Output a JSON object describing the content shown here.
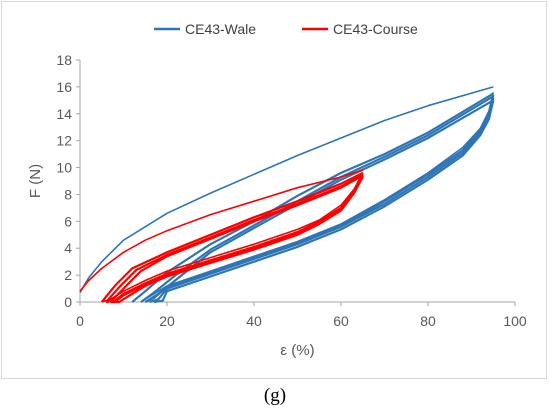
{
  "caption": "(g)",
  "chart_data": {
    "type": "line",
    "title": "",
    "xlabel": "ε (%)",
    "ylabel": "F (N)",
    "xlim": [
      0,
      100
    ],
    "ylim": [
      0,
      18
    ],
    "xticks": [
      0,
      20,
      40,
      60,
      80,
      100
    ],
    "yticks": [
      0,
      2,
      4,
      6,
      8,
      10,
      12,
      14,
      16,
      18
    ],
    "grid": false,
    "legend": "top",
    "series": [
      {
        "name": "CE43-Wale",
        "color": "#2e75b6",
        "cycles": [
          {
            "loading": [
              [
                0,
                0.7
              ],
              [
                2,
                1.8
              ],
              [
                5,
                3.0
              ],
              [
                10,
                4.6
              ],
              [
                20,
                6.6
              ],
              [
                30,
                8.1
              ],
              [
                40,
                9.5
              ],
              [
                50,
                10.9
              ],
              [
                60,
                12.2
              ],
              [
                70,
                13.5
              ],
              [
                80,
                14.6
              ],
              [
                95,
                16.0
              ]
            ],
            "unloading": [
              [
                95,
                15.6
              ],
              [
                94,
                14.2
              ],
              [
                92,
                12.9
              ],
              [
                88,
                11.5
              ],
              [
                80,
                9.6
              ],
              [
                70,
                7.6
              ],
              [
                60,
                5.8
              ],
              [
                50,
                4.5
              ],
              [
                40,
                3.4
              ],
              [
                30,
                2.3
              ],
              [
                20,
                1.2
              ],
              [
                16,
                0.4
              ],
              [
                14,
                0
              ]
            ]
          },
          {
            "loading": [
              [
                12,
                0
              ],
              [
                15,
                0.8
              ],
              [
                20,
                2.2
              ],
              [
                30,
                4.3
              ],
              [
                40,
                6.0
              ],
              [
                50,
                7.9
              ],
              [
                60,
                9.6
              ],
              [
                70,
                11.0
              ],
              [
                80,
                12.6
              ],
              [
                95,
                15.5
              ]
            ],
            "unloading": [
              [
                95,
                15.4
              ],
              [
                94,
                14.0
              ],
              [
                92,
                12.8
              ],
              [
                88,
                11.3
              ],
              [
                80,
                9.5
              ],
              [
                70,
                7.5
              ],
              [
                60,
                5.7
              ],
              [
                50,
                4.4
              ],
              [
                40,
                3.3
              ],
              [
                30,
                2.2
              ],
              [
                20,
                1.1
              ],
              [
                17,
                0.3
              ],
              [
                15,
                0
              ]
            ]
          },
          {
            "loading": [
              [
                14,
                0
              ],
              [
                17,
                0.7
              ],
              [
                22,
                2.0
              ],
              [
                30,
                3.9
              ],
              [
                40,
                5.7
              ],
              [
                50,
                7.5
              ],
              [
                60,
                9.3
              ],
              [
                70,
                10.8
              ],
              [
                80,
                12.4
              ],
              [
                95,
                15.3
              ]
            ],
            "unloading": [
              [
                95,
                15.2
              ],
              [
                94,
                13.8
              ],
              [
                92,
                12.6
              ],
              [
                88,
                11.1
              ],
              [
                80,
                9.3
              ],
              [
                70,
                7.3
              ],
              [
                60,
                5.6
              ],
              [
                50,
                4.3
              ],
              [
                40,
                3.2
              ],
              [
                30,
                2.1
              ],
              [
                20,
                1.0
              ],
              [
                18,
                0.2
              ],
              [
                16,
                0
              ]
            ]
          },
          {
            "loading": [
              [
                15,
                0
              ],
              [
                18,
                0.6
              ],
              [
                23,
                1.9
              ],
              [
                30,
                3.7
              ],
              [
                40,
                5.5
              ],
              [
                50,
                7.3
              ],
              [
                60,
                9.1
              ],
              [
                70,
                10.6
              ],
              [
                80,
                12.2
              ],
              [
                95,
                15.0
              ]
            ],
            "unloading": [
              [
                95,
                15.0
              ],
              [
                94,
                13.6
              ],
              [
                92,
                12.4
              ],
              [
                88,
                10.9
              ],
              [
                80,
                9.1
              ],
              [
                70,
                7.1
              ],
              [
                60,
                5.4
              ],
              [
                50,
                4.1
              ],
              [
                40,
                3.0
              ],
              [
                30,
                1.9
              ],
              [
                20,
                0.8
              ],
              [
                19,
                0.1
              ],
              [
                17,
                0
              ]
            ]
          }
        ]
      },
      {
        "name": "CE43-Course",
        "color": "#ff0000",
        "cycles": [
          {
            "loading": [
              [
                0,
                0.8
              ],
              [
                2,
                1.6
              ],
              [
                5,
                2.5
              ],
              [
                10,
                3.7
              ],
              [
                15,
                4.6
              ],
              [
                20,
                5.3
              ],
              [
                30,
                6.5
              ],
              [
                40,
                7.5
              ],
              [
                50,
                8.5
              ],
              [
                60,
                9.3
              ],
              [
                65,
                9.8
              ]
            ],
            "unloading": [
              [
                65,
                9.6
              ],
              [
                63,
                8.4
              ],
              [
                60,
                7.2
              ],
              [
                55,
                6.1
              ],
              [
                50,
                5.4
              ],
              [
                40,
                4.3
              ],
              [
                30,
                3.3
              ],
              [
                20,
                2.3
              ],
              [
                15,
                1.6
              ],
              [
                10,
                0.8
              ],
              [
                7,
                0.2
              ],
              [
                5,
                0
              ]
            ]
          },
          {
            "loading": [
              [
                5,
                0
              ],
              [
                8,
                1.2
              ],
              [
                12,
                2.5
              ],
              [
                20,
                3.7
              ],
              [
                30,
                5.0
              ],
              [
                40,
                6.3
              ],
              [
                50,
                7.5
              ],
              [
                60,
                8.8
              ],
              [
                65,
                9.6
              ]
            ],
            "unloading": [
              [
                65,
                9.5
              ],
              [
                63,
                8.3
              ],
              [
                60,
                7.0
              ],
              [
                55,
                6.0
              ],
              [
                50,
                5.2
              ],
              [
                40,
                4.1
              ],
              [
                30,
                3.1
              ],
              [
                20,
                2.1
              ],
              [
                15,
                1.4
              ],
              [
                10,
                0.6
              ],
              [
                8,
                0.1
              ],
              [
                6,
                0
              ]
            ]
          },
          {
            "loading": [
              [
                6,
                0
              ],
              [
                9,
                1.1
              ],
              [
                13,
                2.4
              ],
              [
                20,
                3.5
              ],
              [
                30,
                4.8
              ],
              [
                40,
                6.1
              ],
              [
                50,
                7.3
              ],
              [
                60,
                8.6
              ],
              [
                65,
                9.5
              ]
            ],
            "unloading": [
              [
                65,
                9.4
              ],
              [
                63,
                8.2
              ],
              [
                60,
                6.9
              ],
              [
                55,
                5.9
              ],
              [
                50,
                5.1
              ],
              [
                40,
                4.0
              ],
              [
                30,
                3.0
              ],
              [
                20,
                2.0
              ],
              [
                15,
                1.3
              ],
              [
                10,
                0.5
              ],
              [
                8,
                0
              ],
              [
                7,
                0
              ]
            ]
          },
          {
            "loading": [
              [
                7,
                0
              ],
              [
                10,
                1.0
              ],
              [
                14,
                2.3
              ],
              [
                20,
                3.4
              ],
              [
                30,
                4.7
              ],
              [
                40,
                6.0
              ],
              [
                50,
                7.2
              ],
              [
                60,
                8.5
              ],
              [
                65,
                9.4
              ]
            ],
            "unloading": [
              [
                65,
                9.3
              ],
              [
                63,
                8.1
              ],
              [
                60,
                6.8
              ],
              [
                55,
                5.8
              ],
              [
                50,
                5.0
              ],
              [
                40,
                3.9
              ],
              [
                30,
                2.9
              ],
              [
                20,
                1.9
              ],
              [
                15,
                1.2
              ],
              [
                11,
                0.4
              ],
              [
                9,
                0
              ],
              [
                8,
                0
              ]
            ]
          }
        ]
      }
    ]
  }
}
